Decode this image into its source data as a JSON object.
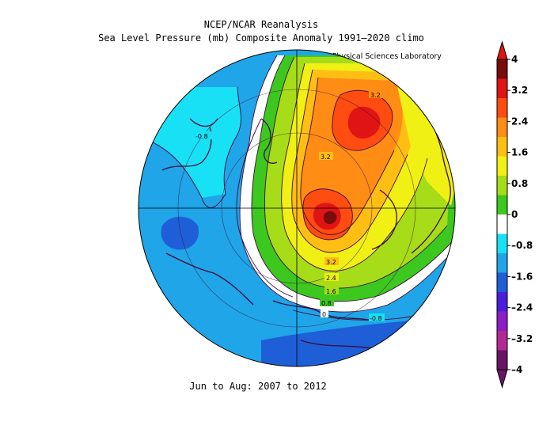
{
  "header": {
    "title_line1": "NCEP/NCAR Reanalysis",
    "title_line2": "Sea Level Pressure (mb) Composite Anomaly 1991–2020 climo",
    "credit": "NOAA Physical Sciences Laboratory"
  },
  "footer": {
    "period": "Jun to Aug: 2007 to 2012"
  },
  "map": {
    "projection": "north-polar-stereographic",
    "variable": "Sea Level Pressure anomaly",
    "units": "mb",
    "contour_labels": [
      "-0.8",
      "3.2",
      "3.2",
      "3.2",
      "2.4",
      "1.6",
      "0.8",
      "0",
      "-0.8"
    ],
    "features": {
      "high_center_greenland": "max anomaly ~3.6 mb",
      "high_center_arctic_ocean": "max anomaly ~3.6 mb",
      "low_center_siberia_pacific": "anomaly ~ -1.6 mb"
    }
  },
  "colorbar": {
    "ticks": [
      "4",
      "3.2",
      "2.4",
      "1.6",
      "0.8",
      "0",
      "–0.8",
      "–1.6",
      "–2.4",
      "–3.2",
      "–4"
    ],
    "colors": [
      "#780c0c",
      "#e01414",
      "#ff4c10",
      "#ff8c14",
      "#ffbe14",
      "#f0f014",
      "#a6dc18",
      "#3cc81e",
      "#ffffff",
      "#19e1f5",
      "#1fa5e8",
      "#1e5fd8",
      "#4a1edc",
      "#8c1ec8",
      "#b42896",
      "#6a1464"
    ]
  },
  "palette": {
    "p_lo_4": "#6a1464",
    "p_lo_3": "#b42896",
    "p_lo_2": "#8c1ec8",
    "n1_6": "#1e5fd8",
    "n0_8": "#1fa5e8",
    "n0_4": "#19e1f5",
    "zero": "#ffffff",
    "p0_4": "#3cc81e",
    "p0_8": "#a6dc18",
    "p1_2": "#f0f014",
    "p1_6": "#ffbe14",
    "p2_4": "#ff8c14",
    "p3_2": "#ff4c10",
    "p3_6": "#e01414",
    "p4": "#780c0c",
    "coast": "#3c0a3c"
  }
}
